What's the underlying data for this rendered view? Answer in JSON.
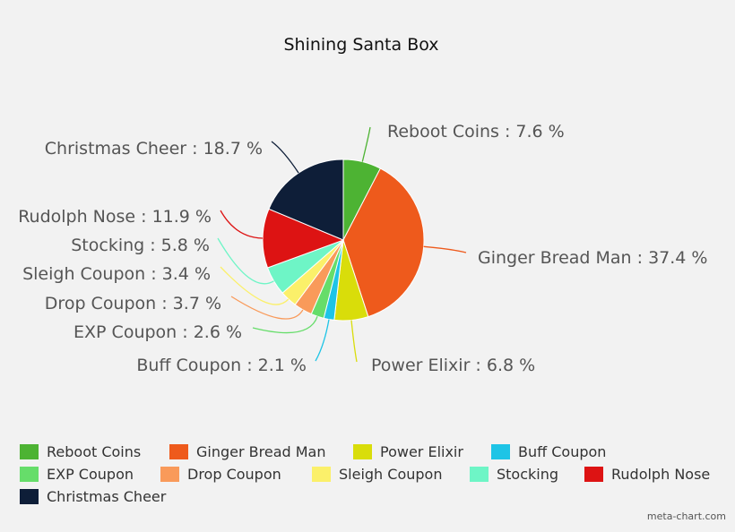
{
  "chart_data": {
    "type": "pie",
    "title": "Shining Santa Box",
    "slices": [
      {
        "label": "Reboot Coins",
        "value": 7.6,
        "display": "Reboot Coins : 7.6 %",
        "color": "#4db333"
      },
      {
        "label": "Ginger Bread Man",
        "value": 37.4,
        "display": "Ginger Bread Man : 37.4 %",
        "color": "#ee5a1c"
      },
      {
        "label": "Power Elixir",
        "value": 6.8,
        "display": "Power Elixir : 6.8 %",
        "color": "#d9dd0a"
      },
      {
        "label": "Buff Coupon",
        "value": 2.1,
        "display": "Buff Coupon : 2.1 %",
        "color": "#1ec4e6"
      },
      {
        "label": "EXP Coupon",
        "value": 2.6,
        "display": "EXP Coupon : 2.6 %",
        "color": "#66dd6a"
      },
      {
        "label": "Drop Coupon",
        "value": 3.7,
        "display": "Drop Coupon : 3.7 %",
        "color": "#f99a5a"
      },
      {
        "label": "Sleigh Coupon",
        "value": 3.4,
        "display": "Sleigh Coupon : 3.4 %",
        "color": "#fbf06a"
      },
      {
        "label": "Stocking",
        "value": 5.8,
        "display": "Stocking : 5.8 %",
        "color": "#6ef5c6"
      },
      {
        "label": "Rudolph Nose",
        "value": 11.9,
        "display": "Rudolph Nose : 11.9 %",
        "color": "#dd1313"
      },
      {
        "label": "Christmas Cheer",
        "value": 18.7,
        "display": "Christmas Cheer : 18.7 %",
        "color": "#0e1e38"
      }
    ],
    "legend_position": "bottom"
  },
  "credit": "meta-chart.com"
}
